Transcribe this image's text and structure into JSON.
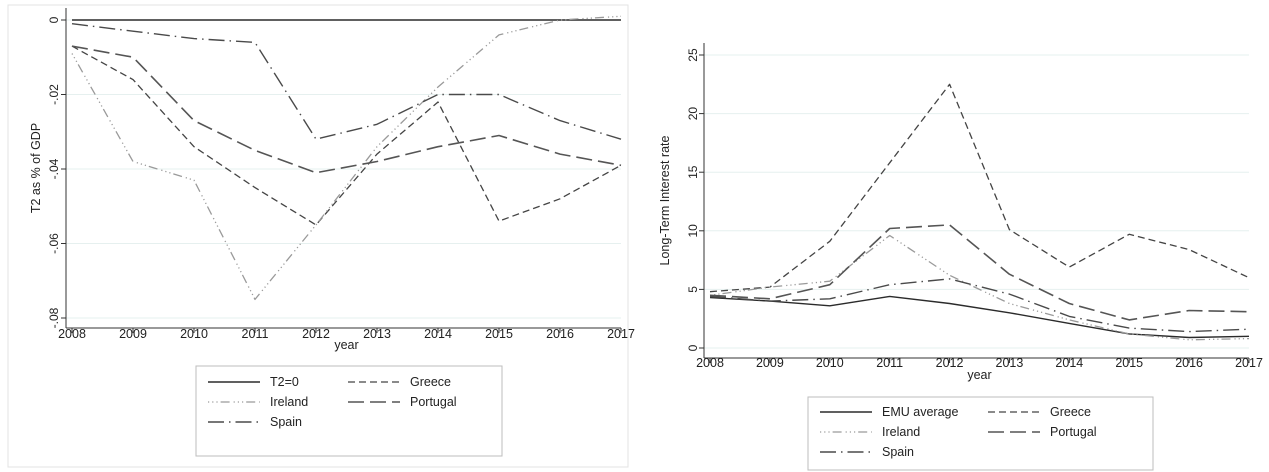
{
  "chart_data": [
    {
      "type": "line",
      "title": "",
      "xlabel": "year",
      "ylabel": "T2 as % of GDP",
      "x": [
        2008,
        2009,
        2010,
        2011,
        2012,
        2013,
        2014,
        2015,
        2016,
        2017
      ],
      "xlim": [
        2008,
        2017
      ],
      "ylim": [
        -0.08,
        0
      ],
      "yticks": [
        0,
        -0.02,
        -0.04,
        -0.06,
        -0.08
      ],
      "ytick_labels": [
        "0",
        "-.02",
        "-.04",
        "-.06",
        "-.08"
      ],
      "grid": true,
      "legend": "bottom",
      "series": [
        {
          "name": "T2=0",
          "style": "solid",
          "values": [
            0,
            0,
            0,
            0,
            0,
            0,
            0,
            0,
            0,
            0
          ]
        },
        {
          "name": "Greece",
          "style": "dashed",
          "values": [
            -0.007,
            -0.016,
            -0.034,
            -0.045,
            -0.055,
            -0.036,
            -0.022,
            -0.054,
            -0.048,
            -0.039
          ]
        },
        {
          "name": "Ireland",
          "style": "dot-dot-dash",
          "values": [
            -0.009,
            -0.038,
            -0.043,
            -0.075,
            -0.055,
            -0.034,
            -0.018,
            -0.004,
            0.0,
            0.001
          ]
        },
        {
          "name": "Portugal",
          "style": "long-dash",
          "values": [
            -0.007,
            -0.01,
            -0.027,
            -0.035,
            -0.041,
            -0.038,
            -0.034,
            -0.031,
            -0.036,
            -0.039
          ]
        },
        {
          "name": "Spain",
          "style": "long-dash-dot",
          "values": [
            -0.001,
            -0.003,
            -0.005,
            -0.006,
            -0.032,
            -0.028,
            -0.02,
            -0.02,
            -0.027,
            -0.032
          ]
        }
      ]
    },
    {
      "type": "line",
      "title": "",
      "xlabel": "year",
      "ylabel": "Long-Term Interest rate",
      "x": [
        2008,
        2009,
        2010,
        2011,
        2012,
        2013,
        2014,
        2015,
        2016,
        2017
      ],
      "xlim": [
        2008,
        2017
      ],
      "ylim": [
        0,
        25
      ],
      "yticks": [
        0,
        5,
        10,
        15,
        20,
        25
      ],
      "ytick_labels": [
        "0",
        "5",
        "10",
        "15",
        "20",
        "25"
      ],
      "grid": true,
      "legend": "bottom",
      "series": [
        {
          "name": "EMU average",
          "style": "solid",
          "values": [
            4.3,
            4.0,
            3.6,
            4.4,
            3.8,
            3.0,
            2.1,
            1.2,
            0.9,
            1.0
          ]
        },
        {
          "name": "Greece",
          "style": "dashed",
          "values": [
            4.8,
            5.2,
            9.1,
            15.8,
            22.5,
            10.1,
            6.9,
            9.7,
            8.4,
            6.0
          ]
        },
        {
          "name": "Ireland",
          "style": "dot-dot-dash",
          "values": [
            4.5,
            5.2,
            5.7,
            9.6,
            6.2,
            3.8,
            2.4,
            1.2,
            0.7,
            0.8
          ]
        },
        {
          "name": "Portugal",
          "style": "long-dash",
          "values": [
            4.5,
            4.2,
            5.4,
            10.2,
            10.5,
            6.3,
            3.8,
            2.4,
            3.2,
            3.1
          ]
        },
        {
          "name": "Spain",
          "style": "long-dash-dot",
          "values": [
            4.4,
            4.0,
            4.2,
            5.4,
            5.9,
            4.6,
            2.7,
            1.7,
            1.4,
            1.6
          ]
        }
      ]
    }
  ]
}
